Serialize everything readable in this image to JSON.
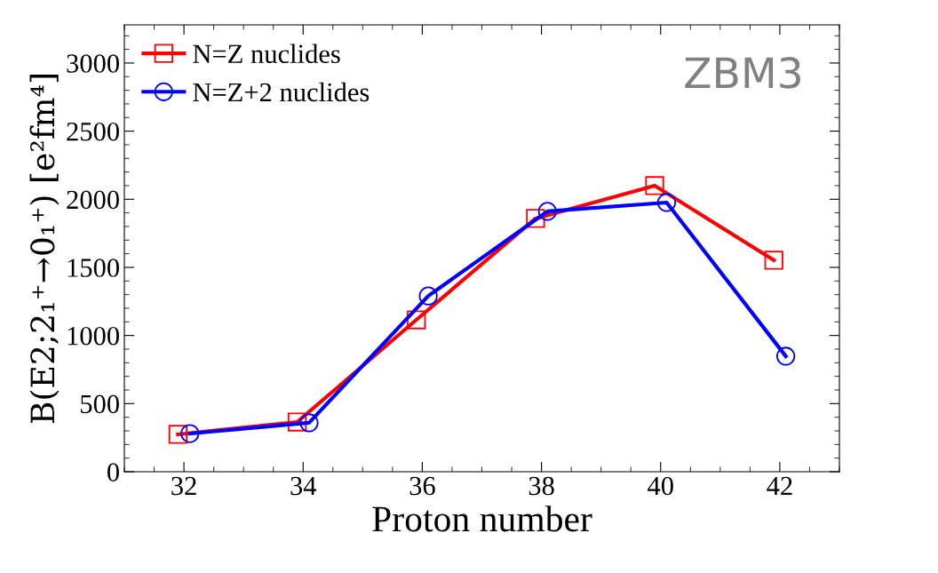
{
  "chart_data": {
    "type": "line",
    "xlabel": "Proton number",
    "ylabel": "B(E2;2₁⁺→0₁⁺) [e²fm⁴]",
    "annotations": [
      "ZBM3"
    ],
    "xlim": [
      31,
      43
    ],
    "xticks": [
      32,
      34,
      36,
      38,
      40,
      42
    ],
    "ylim": [
      0,
      3280
    ],
    "yticks": [
      0,
      500,
      1000,
      1500,
      2000,
      2500,
      3000
    ],
    "legend": "top left",
    "grid": false,
    "line_style": "solid",
    "series": [
      {
        "name": "N=Z nuclides",
        "color": "#ff0000",
        "marker": "square",
        "x": [
          31.9,
          33.9,
          35.9,
          37.9,
          39.9,
          41.9
        ],
        "values": [
          274,
          365,
          1115,
          1859,
          2100,
          1552
        ]
      },
      {
        "name": "N=Z+2 nuclides",
        "color": "#0000ff",
        "marker": "circle",
        "x": [
          32.1,
          34.1,
          36.1,
          38.1,
          40.1,
          42.1
        ],
        "values": [
          280,
          359,
          1290,
          1911,
          1976,
          848
        ]
      }
    ]
  }
}
